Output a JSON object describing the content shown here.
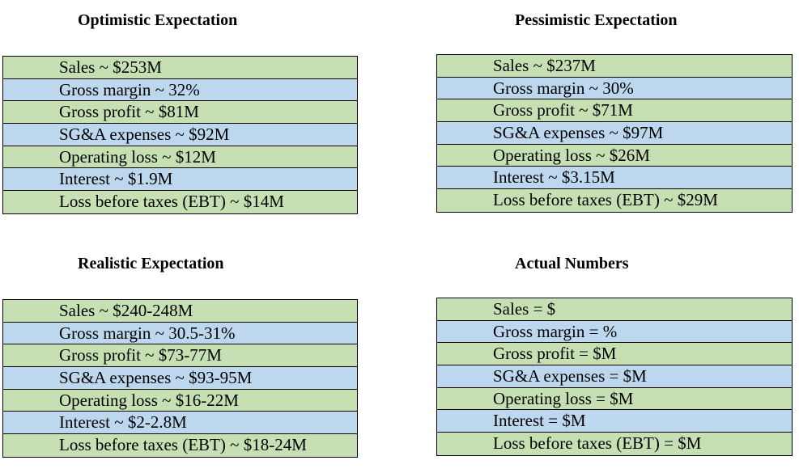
{
  "optimistic": {
    "title": "Optimistic Expectation",
    "rows": [
      "Sales ~ $253M",
      "Gross margin ~ 32%",
      "Gross profit ~ $81M",
      "SG&A expenses ~ $92M",
      "Operating loss ~ $12M",
      "Interest ~ $1.9M",
      "Loss before taxes (EBT) ~ $14M"
    ]
  },
  "pessimistic": {
    "title": "Pessimistic Expectation",
    "rows": [
      "Sales ~ $237M",
      "Gross margin ~ 30%",
      "Gross profit ~ $71M",
      "SG&A expenses ~ $97M",
      "Operating loss ~ $26M",
      "Interest ~ $3.15M",
      "Loss before taxes (EBT) ~ $29M"
    ]
  },
  "realistic": {
    "title": "Realistic Expectation",
    "rows": [
      "Sales ~ $240-248M",
      "Gross margin ~ 30.5-31%",
      "Gross profit ~ $73-77M",
      "SG&A expenses ~ $93-95M",
      "Operating loss ~ $16-22M",
      "Interest ~ $2-2.8M",
      "Loss before taxes (EBT) ~ $18-24M"
    ]
  },
  "actual": {
    "title": "Actual Numbers",
    "rows": [
      "Sales = $",
      "Gross margin = %",
      "Gross profit = $M",
      "SG&A expenses = $M",
      "Operating loss = $M",
      "Interest = $M",
      "Loss before taxes (EBT) = $M"
    ]
  },
  "colors": {
    "row_green": "#c6e0b4",
    "row_blue": "#bdd7ee",
    "border": "#000000"
  }
}
